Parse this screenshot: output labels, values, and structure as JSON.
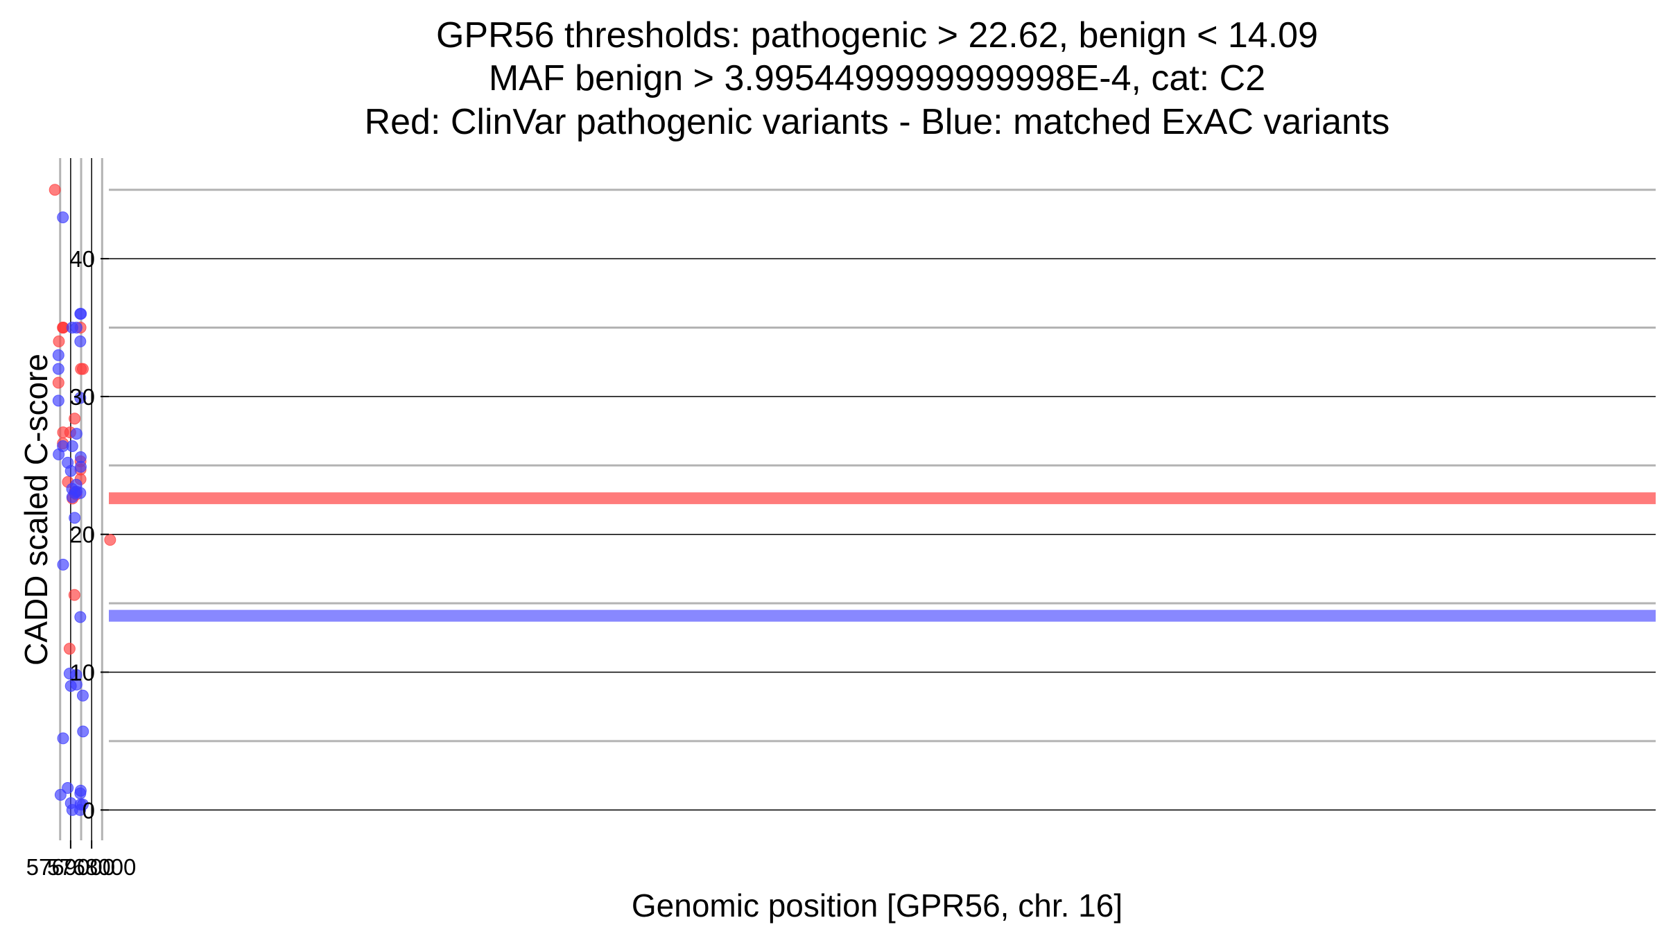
{
  "chart_data": {
    "type": "scatter",
    "title_lines": [
      "GPR56 thresholds: pathogenic > 22.62, benign < 14.09",
      "MAF benign > 3.9954499999999998E-4, cat: C2",
      "Red: ClinVar pathogenic variants - Blue: matched ExAC variants"
    ],
    "xlabel": "Genomic position [GPR56, chr. 16]",
    "ylabel": "CADD scaled C-score",
    "xlim": [
      5767180,
      5693500
    ],
    "ylim": [
      -2.2,
      47.3
    ],
    "x_ticks": [
      5768000,
      5769000
    ],
    "x_tick_labels": [
      "5768000",
      "5769000"
    ],
    "y_ticks": [
      0,
      10,
      20,
      30,
      40
    ],
    "y_tick_labels": [
      "0",
      "10",
      "20",
      "30",
      "40"
    ],
    "x_minor_gridlines": [
      5767500,
      5768500,
      5769500
    ],
    "y_minor_gridlines": [
      5,
      15,
      25,
      35,
      45
    ],
    "thresholds": [
      {
        "name": "pathogenic",
        "value": 22.62,
        "color": "#ff5a5a"
      },
      {
        "name": "benign",
        "value": 14.09,
        "color": "#6a6aff"
      }
    ],
    "colors": {
      "pathogenic_point": "#ff3b3b",
      "benign_point": "#3b3bff",
      "major_grid": "#000000",
      "minor_grid": "#b3b3b3"
    },
    "series": [
      {
        "name": "ClinVar pathogenic",
        "color": "#ff3b3b",
        "points": [
          [
            5767120,
            19.6
          ],
          [
            5768420,
            32.0
          ],
          [
            5768510,
            32.0
          ],
          [
            5768530,
            35.0
          ],
          [
            5768530,
            25.3
          ],
          [
            5768530,
            24.7
          ],
          [
            5768530,
            24.0
          ],
          [
            5768730,
            22.9
          ],
          [
            5768800,
            23.1
          ],
          [
            5768810,
            28.4
          ],
          [
            5768820,
            15.6
          ],
          [
            5768910,
            22.6
          ],
          [
            5769020,
            27.4
          ],
          [
            5769050,
            11.7
          ],
          [
            5769130,
            23.8
          ],
          [
            5769360,
            35.0
          ],
          [
            5769360,
            35.0
          ],
          [
            5769370,
            35.0
          ],
          [
            5769360,
            27.4
          ],
          [
            5769370,
            26.6
          ],
          [
            5769560,
            34.0
          ],
          [
            5769580,
            31.0
          ],
          [
            5769750,
            45.0
          ]
        ]
      },
      {
        "name": "matched ExAC",
        "color": "#3b3bff",
        "points": [
          [
            5768420,
            8.3
          ],
          [
            5768410,
            5.7
          ],
          [
            5768420,
            0.4
          ],
          [
            5768510,
            36.0
          ],
          [
            5768540,
            36.0
          ],
          [
            5768540,
            34.0
          ],
          [
            5768540,
            29.9
          ],
          [
            5768520,
            25.6
          ],
          [
            5768520,
            24.9
          ],
          [
            5768540,
            23.0
          ],
          [
            5768540,
            14.0
          ],
          [
            5768520,
            1.4
          ],
          [
            5768540,
            1.2
          ],
          [
            5768530,
            0.4
          ],
          [
            5768550,
            0.0
          ],
          [
            5768720,
            35.0
          ],
          [
            5768720,
            27.3
          ],
          [
            5768730,
            23.6
          ],
          [
            5768720,
            23.1
          ],
          [
            5768730,
            9.8
          ],
          [
            5768720,
            9.1
          ],
          [
            5768800,
            23.0
          ],
          [
            5768810,
            21.2
          ],
          [
            5768920,
            35.0
          ],
          [
            5768920,
            26.4
          ],
          [
            5768930,
            23.3
          ],
          [
            5768920,
            22.7
          ],
          [
            5768920,
            0.0
          ],
          [
            5768990,
            24.6
          ],
          [
            5768990,
            9.0
          ],
          [
            5768990,
            0.5
          ],
          [
            5769050,
            9.9
          ],
          [
            5769140,
            25.2
          ],
          [
            5769140,
            1.6
          ],
          [
            5769370,
            43.0
          ],
          [
            5769370,
            26.4
          ],
          [
            5769360,
            17.8
          ],
          [
            5769360,
            5.2
          ],
          [
            5769480,
            1.1
          ],
          [
            5769580,
            33.0
          ],
          [
            5769580,
            32.0
          ],
          [
            5769580,
            29.7
          ],
          [
            5769570,
            25.8
          ]
        ]
      }
    ]
  }
}
